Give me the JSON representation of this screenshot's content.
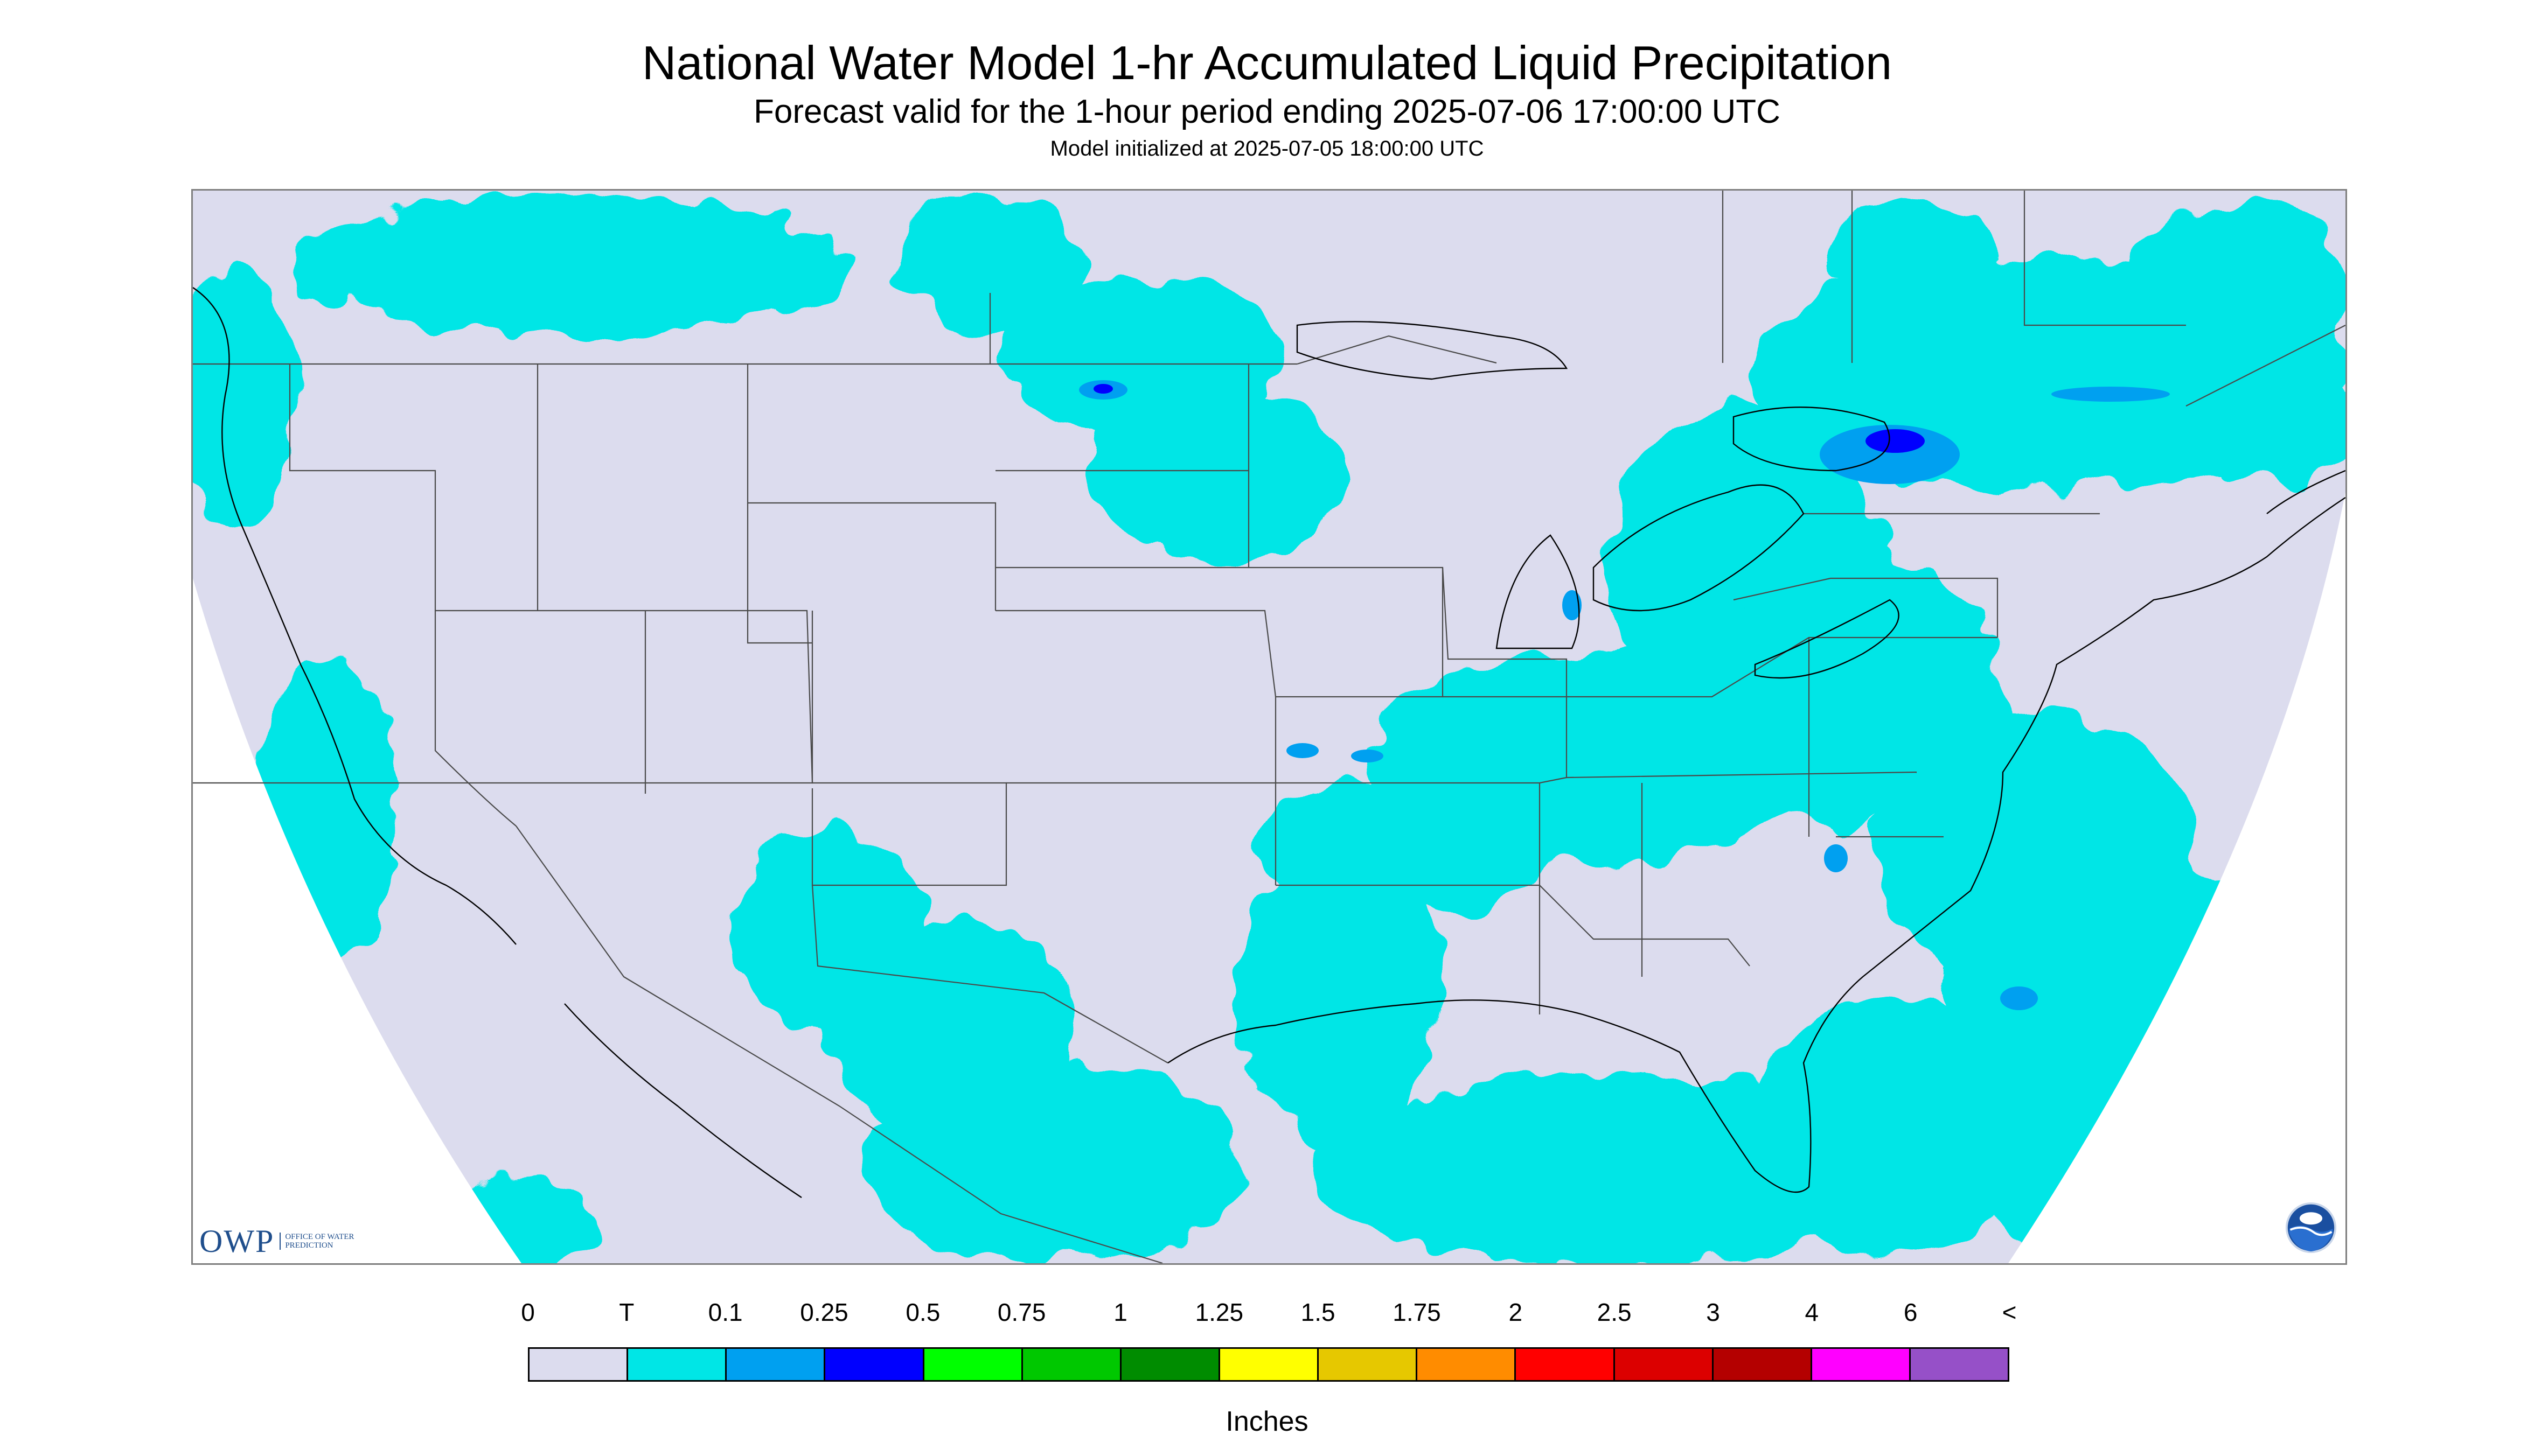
{
  "header": {
    "title": "National Water Model 1-hr Accumulated Liquid Precipitation",
    "subtitle": "Forecast valid for the 1-hour period ending 2025-07-06 17:00:00 UTC",
    "init_line": "Model initialized at 2025-07-05 18:00:00 UTC"
  },
  "logos": {
    "owp": "OWP",
    "owp_sub": "OFFICE OF WATER PREDICTION",
    "noaa_icon": "noaa-logo-icon"
  },
  "colors": {
    "background_no_data": "#ffffff",
    "zero_precip": "#dcdcee",
    "boundary_lines": "#4a4a4a",
    "coastline": "#000000"
  },
  "legend": {
    "unit": "Inches",
    "labels": [
      "0",
      "T",
      "0.1",
      "0.25",
      "0.5",
      "0.75",
      "1",
      "1.25",
      "1.5",
      "1.75",
      "2",
      "2.5",
      "3",
      "4",
      "6",
      "<"
    ],
    "colors": [
      "#dcdcee",
      "#00e6e6",
      "#00a0f0",
      "#0000ff",
      "#00ff00",
      "#00c800",
      "#008c00",
      "#ffff00",
      "#e6c800",
      "#ff8c00",
      "#ff0000",
      "#dc0000",
      "#b40000",
      "#ff00ff",
      "#9650c8"
    ]
  },
  "map": {
    "projection": "conus",
    "legend_classes_present": [
      "0",
      "T",
      "0.1",
      "0.25"
    ]
  }
}
